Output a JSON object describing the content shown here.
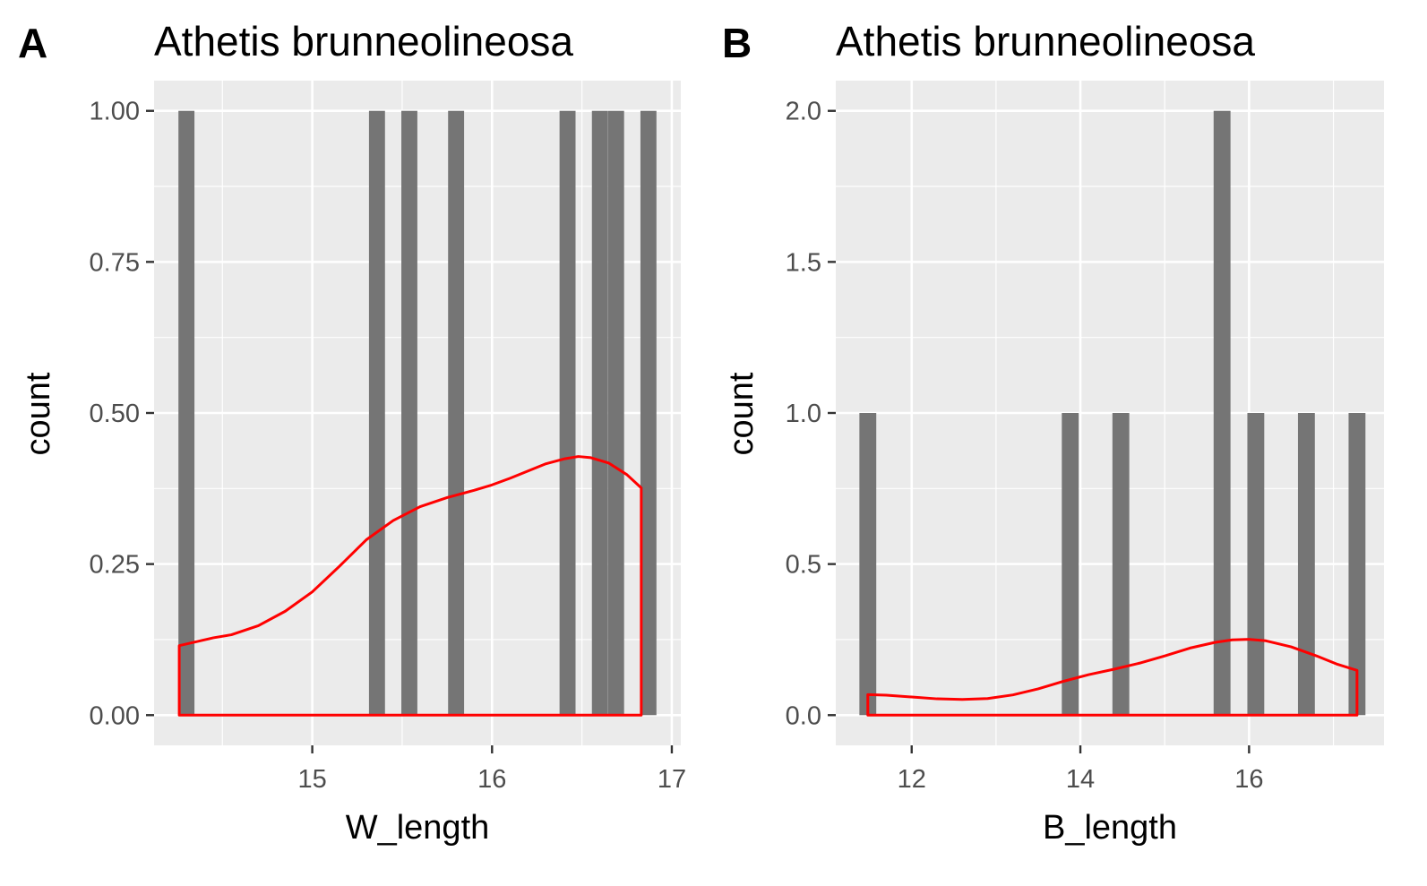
{
  "panels": [
    {
      "tag": "A",
      "title": "Athetis brunneolineosa",
      "chart_data": {
        "type": "bar",
        "title": "Athetis brunneolineosa",
        "xlabel": "W_length",
        "ylabel": "count",
        "xlim": [
          14.12,
          17.05
        ],
        "ylim": [
          -0.05,
          1.05
        ],
        "x_ticks": [
          15,
          16,
          17
        ],
        "x_tick_labels": [
          "15",
          "16",
          "17"
        ],
        "y_ticks": [
          0,
          0.25,
          0.5,
          0.75,
          1.0
        ],
        "y_tick_labels": [
          "0.00",
          "0.25",
          "0.50",
          "0.75",
          "1.00"
        ],
        "bin_width": 0.089,
        "bars": [
          {
            "x": 14.3,
            "count": 1
          },
          {
            "x": 15.36,
            "count": 1
          },
          {
            "x": 15.54,
            "count": 1
          },
          {
            "x": 15.8,
            "count": 1
          },
          {
            "x": 16.42,
            "count": 1
          },
          {
            "x": 16.6,
            "count": 1
          },
          {
            "x": 16.69,
            "count": 1
          },
          {
            "x": 16.87,
            "count": 1
          }
        ],
        "density": {
          "x": [
            14.26,
            14.45,
            14.55,
            14.7,
            14.85,
            15.0,
            15.15,
            15.3,
            15.45,
            15.6,
            15.75,
            15.9,
            16.0,
            16.1,
            16.2,
            16.3,
            16.4,
            16.48,
            16.55,
            16.65,
            16.75,
            16.83
          ],
          "y": [
            0.115,
            0.128,
            0.133,
            0.148,
            0.172,
            0.204,
            0.246,
            0.29,
            0.322,
            0.345,
            0.36,
            0.372,
            0.381,
            0.392,
            0.404,
            0.416,
            0.424,
            0.428,
            0.426,
            0.417,
            0.398,
            0.376
          ]
        },
        "grid": true,
        "colors": {
          "bar": "#757575",
          "density": "#ff0000",
          "panel": "#ebebeb",
          "grid": "#ffffff"
        }
      }
    },
    {
      "tag": "B",
      "title": "Athetis brunneolineosa",
      "chart_data": {
        "type": "bar",
        "title": "Athetis brunneolineosa",
        "xlabel": "B_length",
        "ylabel": "count",
        "xlim": [
          11.1,
          17.6
        ],
        "ylim": [
          -0.1,
          2.1
        ],
        "x_ticks": [
          12,
          14,
          16
        ],
        "x_tick_labels": [
          "12",
          "14",
          "16"
        ],
        "y_ticks": [
          0,
          0.5,
          1.0,
          1.5,
          2.0
        ],
        "y_tick_labels": [
          "0.0",
          "0.5",
          "1.0",
          "1.5",
          "2.0"
        ],
        "bin_width": 0.2,
        "bars": [
          {
            "x": 11.48,
            "count": 1
          },
          {
            "x": 13.88,
            "count": 1
          },
          {
            "x": 14.48,
            "count": 1
          },
          {
            "x": 15.68,
            "count": 2
          },
          {
            "x": 16.08,
            "count": 1
          },
          {
            "x": 16.68,
            "count": 1
          },
          {
            "x": 17.28,
            "count": 1
          }
        ],
        "density": {
          "x": [
            11.48,
            11.7,
            12.0,
            12.3,
            12.6,
            12.9,
            13.2,
            13.5,
            13.8,
            14.1,
            14.4,
            14.7,
            15.0,
            15.3,
            15.6,
            15.8,
            16.0,
            16.2,
            16.5,
            16.8,
            17.05,
            17.28
          ],
          "y": [
            0.068,
            0.066,
            0.06,
            0.054,
            0.052,
            0.055,
            0.067,
            0.087,
            0.112,
            0.134,
            0.152,
            0.172,
            0.196,
            0.222,
            0.241,
            0.249,
            0.251,
            0.246,
            0.226,
            0.196,
            0.168,
            0.148
          ]
        },
        "grid": true,
        "colors": {
          "bar": "#757575",
          "density": "#ff0000",
          "panel": "#ebebeb",
          "grid": "#ffffff"
        }
      }
    }
  ]
}
